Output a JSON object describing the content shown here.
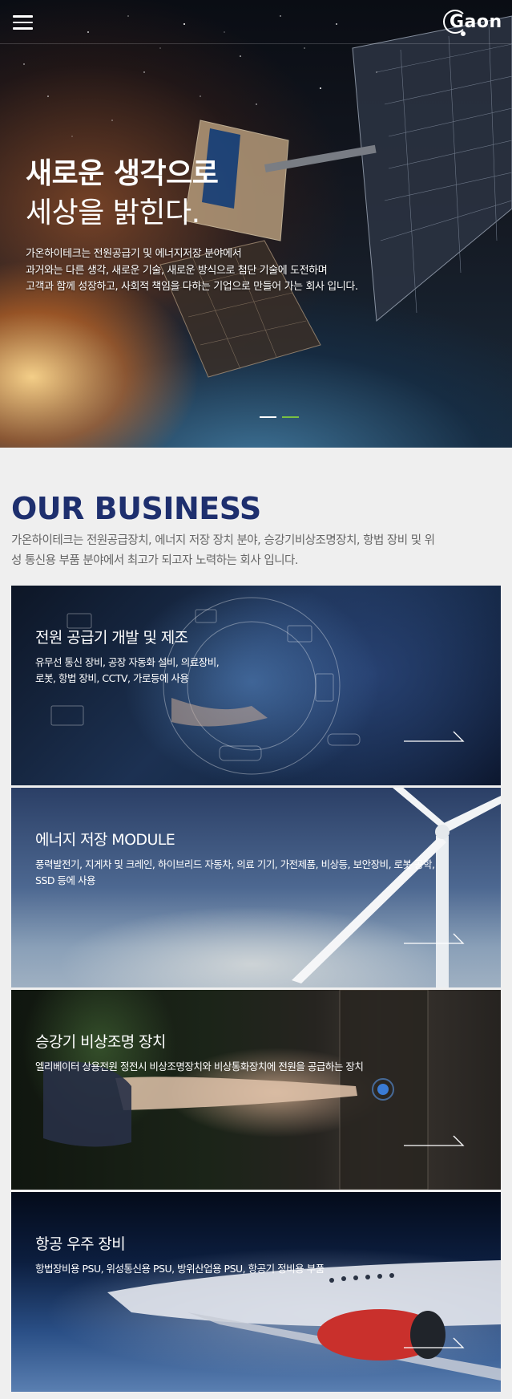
{
  "header": {
    "menu_icon": "hamburger-icon",
    "logo_text": "Gaon"
  },
  "hero": {
    "title_line1": "새로운 생각으로",
    "title_line2": "세상을 밝힌다.",
    "desc_lines": [
      "가온하이테크는 전원공급기 및 에너지저장 분야에서",
      "과거와는 다른 생각, 새로운 기술, 새로운 방식으로 첨단 기술에 도전하며",
      "고객과 함께 성장하고, 사회적 책임을 다하는 기업으로 만들어 가는 회사 입니다."
    ],
    "slides_total": 2,
    "active_slide": 2
  },
  "business": {
    "title": "OUR BUSINESS",
    "desc_lines": [
      "가온하이테크는 전원공급장치, 에너지 저장 장치 분야, 승강기비상조명장치, 항법 장비 및 위",
      "성 통신용 부품 분야에서 최고가 되고자 노력하는 회사 입니다."
    ],
    "cards": [
      {
        "title": "전원 공급기 개발 및 제조",
        "desc_lines": [
          "유무선 통신 장비, 공장 자동화 설비, 의료장비,",
          "로봇, 항법 장비, CCTV, 가로등에 사용"
        ]
      },
      {
        "title": "에너지 저장 MODULE",
        "desc_lines": [
          "풍력발전기, 지게차 및 크레인, 하이브리드 자동차, 의료 기기, 가전제품, 비상등, 보안장비, 로봇 공학,",
          "SSD 등에 사용"
        ]
      },
      {
        "title": "승강기 비상조명 장치",
        "desc_lines": [
          "엘리베이터 상용전원 정전시 비상조명장치와 비상통화장치에 전원을 공급하는 장치"
        ]
      },
      {
        "title": "항공 우주 장비",
        "desc_lines": [
          "항법장비용 PSU, 위성통신용 PSU, 방위산업용 PSU, 항공기 정비용 부품"
        ]
      }
    ]
  },
  "colors": {
    "brand_navy": "#1e2f6e",
    "active_dot": "#79c043"
  }
}
